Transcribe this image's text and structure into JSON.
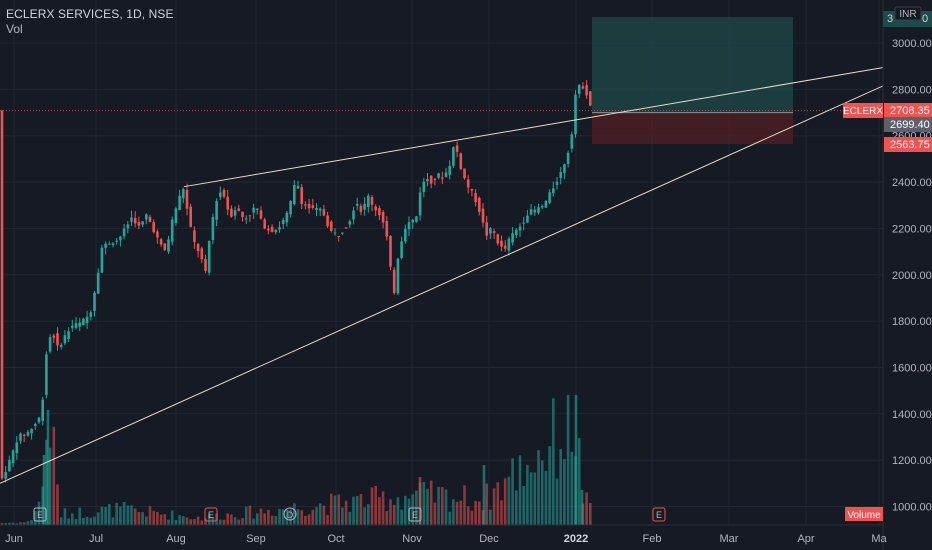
{
  "header": {
    "symbol_line": "ECLERX SERVICES, 1D, NSE",
    "volume_label": "Vol"
  },
  "colors": {
    "background": "#161a25",
    "grid": "#232735",
    "up": "#26a69a",
    "down": "#ef5350",
    "trendline": "#e8dcc4",
    "target_zone": "#1d4a4a",
    "stop_zone": "#4a2024"
  },
  "axis": {
    "currency": "INR",
    "y_ticks": [
      "1000.00",
      "1200.00",
      "1400.00",
      "1600.00",
      "1800.00",
      "2000.00",
      "2200.00",
      "2400.00",
      "2600.00",
      "2800.00",
      "3000.00"
    ],
    "x_ticks": [
      "Jun",
      "Jul",
      "Aug",
      "Sep",
      "Oct",
      "Nov",
      "Dec",
      "2022",
      "Feb",
      "Mar",
      "Apr",
      "Ma"
    ]
  },
  "price_labels": {
    "ticker": "ECLERX",
    "last_price": "2708.35",
    "entry": "2699.40",
    "stop": "2563.75",
    "target": "3",
    "target_suffix": "0",
    "volume_badge": "Volume"
  },
  "event_markers": [
    "E",
    "E",
    "D",
    "E",
    "E"
  ],
  "chart_data": {
    "type": "candlestick",
    "title": "ECLERX SERVICES, 1D, NSE",
    "ylim": [
      940,
      3140
    ],
    "y_ticks": [
      1000,
      1200,
      1400,
      1600,
      1800,
      2000,
      2200,
      2400,
      2600,
      2800,
      3000
    ],
    "x_categories": [
      "Jun",
      "Jul",
      "Aug",
      "Sep",
      "Oct",
      "Nov",
      "Dec",
      "2022",
      "Feb",
      "Mar",
      "Apr",
      "Ma"
    ],
    "close_path": [
      [
        0,
        1100
      ],
      [
        10,
        1200
      ],
      [
        18,
        1300
      ],
      [
        28,
        1320
      ],
      [
        36,
        1360
      ],
      [
        42,
        1400
      ],
      [
        44,
        1600
      ],
      [
        48,
        1700
      ],
      [
        52,
        1760
      ],
      [
        58,
        1680
      ],
      [
        64,
        1730
      ],
      [
        72,
        1780
      ],
      [
        80,
        1790
      ],
      [
        90,
        1830
      ],
      [
        96,
        1960
      ],
      [
        102,
        2120
      ],
      [
        110,
        2140
      ],
      [
        118,
        2150
      ],
      [
        124,
        2190
      ],
      [
        132,
        2250
      ],
      [
        140,
        2200
      ],
      [
        146,
        2260
      ],
      [
        152,
        2210
      ],
      [
        160,
        2130
      ],
      [
        166,
        2100
      ],
      [
        172,
        2230
      ],
      [
        178,
        2320
      ],
      [
        184,
        2380
      ],
      [
        188,
        2250
      ],
      [
        194,
        2140
      ],
      [
        200,
        2090
      ],
      [
        206,
        2000
      ],
      [
        210,
        2180
      ],
      [
        216,
        2320
      ],
      [
        222,
        2370
      ],
      [
        230,
        2250
      ],
      [
        236,
        2290
      ],
      [
        244,
        2240
      ],
      [
        250,
        2260
      ],
      [
        256,
        2300
      ],
      [
        262,
        2220
      ],
      [
        270,
        2190
      ],
      [
        278,
        2200
      ],
      [
        286,
        2250
      ],
      [
        292,
        2330
      ],
      [
        296,
        2420
      ],
      [
        302,
        2310
      ],
      [
        308,
        2290
      ],
      [
        314,
        2280
      ],
      [
        322,
        2280
      ],
      [
        330,
        2190
      ],
      [
        338,
        2170
      ],
      [
        344,
        2200
      ],
      [
        350,
        2240
      ],
      [
        356,
        2320
      ],
      [
        362,
        2270
      ],
      [
        368,
        2340
      ],
      [
        374,
        2290
      ],
      [
        380,
        2260
      ],
      [
        386,
        2190
      ],
      [
        390,
        2040
      ],
      [
        394,
        1920
      ],
      [
        398,
        2080
      ],
      [
        404,
        2200
      ],
      [
        410,
        2230
      ],
      [
        416,
        2240
      ],
      [
        420,
        2360
      ],
      [
        426,
        2420
      ],
      [
        432,
        2400
      ],
      [
        438,
        2430
      ],
      [
        444,
        2420
      ],
      [
        450,
        2480
      ],
      [
        454,
        2560
      ],
      [
        458,
        2520
      ],
      [
        462,
        2440
      ],
      [
        468,
        2380
      ],
      [
        474,
        2340
      ],
      [
        480,
        2270
      ],
      [
        486,
        2170
      ],
      [
        492,
        2200
      ],
      [
        498,
        2140
      ],
      [
        504,
        2100
      ],
      [
        510,
        2160
      ],
      [
        516,
        2190
      ],
      [
        522,
        2220
      ],
      [
        528,
        2270
      ],
      [
        536,
        2280
      ],
      [
        544,
        2300
      ],
      [
        550,
        2350
      ],
      [
        556,
        2400
      ],
      [
        562,
        2450
      ],
      [
        568,
        2530
      ],
      [
        572,
        2620
      ],
      [
        576,
        2800
      ],
      [
        582,
        2820
      ],
      [
        586,
        2790
      ],
      [
        592,
        2708
      ]
    ],
    "volume_path": [
      [
        0,
        30
      ],
      [
        30,
        50
      ],
      [
        44,
        600
      ],
      [
        48,
        2100
      ],
      [
        60,
        180
      ],
      [
        120,
        260
      ],
      [
        200,
        120
      ],
      [
        290,
        280
      ],
      [
        420,
        500
      ],
      [
        484,
        420
      ],
      [
        576,
        1700
      ],
      [
        582,
        500
      ],
      [
        592,
        200
      ]
    ],
    "trendlines": [
      {
        "name": "upper-wedge",
        "from": [
          184,
          2380
        ],
        "to": [
          932,
          2930
        ]
      },
      {
        "name": "lower-wedge",
        "from": [
          0,
          1100
        ],
        "to": [
          932,
          2910
        ]
      }
    ],
    "position": {
      "entry": 2699.4,
      "stop": 2563.75,
      "target": 3112,
      "x_from": 592,
      "x_to": 793
    }
  }
}
